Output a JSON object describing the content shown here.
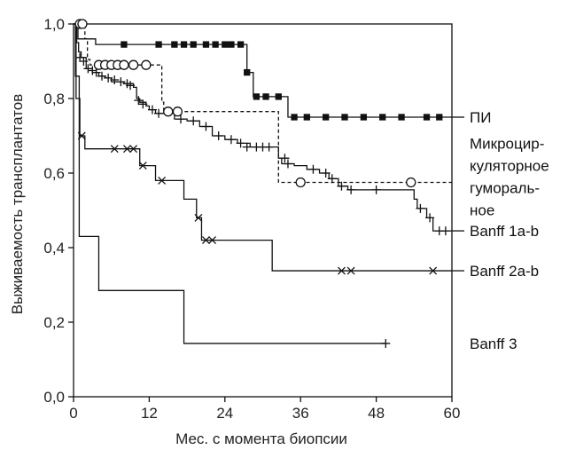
{
  "chart_data": {
    "type": "line",
    "subtype": "kaplan-meier step",
    "xlabel": "Мес. с момента биопсии",
    "ylabel": "Выживаемость трансплантатов",
    "xlim": [
      0,
      60
    ],
    "ylim": [
      0,
      1
    ],
    "x_ticks": [
      "0",
      "12",
      "24",
      "36",
      "48",
      "60"
    ],
    "y_ticks": [
      "0,0",
      "0,2",
      "0,4",
      "0,6",
      "0,8",
      "1,0"
    ],
    "grid": false,
    "legend_placement": "right, labels at curve ends",
    "series": [
      {
        "name": "ПИ",
        "style": "solid",
        "marker": "square",
        "steps": [
          [
            0,
            1.0
          ],
          [
            0.7,
            0.96
          ],
          [
            3.5,
            0.945
          ],
          [
            27.5,
            0.87
          ],
          [
            28.5,
            0.805
          ],
          [
            34,
            0.75
          ],
          [
            60,
            0.75
          ]
        ],
        "censors": [
          [
            8,
            0.945
          ],
          [
            13.5,
            0.945
          ],
          [
            16,
            0.945
          ],
          [
            17.5,
            0.945
          ],
          [
            19,
            0.945
          ],
          [
            21,
            0.945
          ],
          [
            22.5,
            0.945
          ],
          [
            24,
            0.945
          ],
          [
            25,
            0.945
          ],
          [
            26.5,
            0.945
          ],
          [
            27.5,
            0.87
          ],
          [
            29,
            0.805
          ],
          [
            30.5,
            0.805
          ],
          [
            32.5,
            0.805
          ],
          [
            35,
            0.75
          ],
          [
            37,
            0.75
          ],
          [
            40,
            0.75
          ],
          [
            43,
            0.75
          ],
          [
            46,
            0.75
          ],
          [
            49,
            0.75
          ],
          [
            52,
            0.75
          ],
          [
            56,
            0.75
          ],
          [
            58,
            0.75
          ]
        ]
      },
      {
        "name": "Микроцир-\nкуляторное\nгумораль-\nное",
        "style": "dashed",
        "marker": "circle",
        "steps": [
          [
            0,
            1.0
          ],
          [
            1.8,
            0.96
          ],
          [
            2.2,
            0.905
          ],
          [
            2.6,
            0.89
          ],
          [
            14,
            0.79
          ],
          [
            14.3,
            0.765
          ],
          [
            32.5,
            0.575
          ],
          [
            60,
            0.575
          ]
        ],
        "censors": [
          [
            1,
            1.0
          ],
          [
            1.4,
            1.0
          ],
          [
            4,
            0.89
          ],
          [
            5,
            0.89
          ],
          [
            6,
            0.89
          ],
          [
            7,
            0.89
          ],
          [
            8,
            0.89
          ],
          [
            9.5,
            0.89
          ],
          [
            11.5,
            0.89
          ],
          [
            15,
            0.765
          ],
          [
            16.5,
            0.765
          ],
          [
            36,
            0.575
          ],
          [
            53.5,
            0.575
          ]
        ]
      },
      {
        "name": "Banff 1a-b",
        "style": "solid",
        "marker": "plus",
        "steps": [
          [
            0,
            1.0
          ],
          [
            0.5,
            0.95
          ],
          [
            0.8,
            0.925
          ],
          [
            1.2,
            0.91
          ],
          [
            2,
            0.88
          ],
          [
            3,
            0.87
          ],
          [
            4,
            0.86
          ],
          [
            5,
            0.855
          ],
          [
            6,
            0.845
          ],
          [
            8,
            0.84
          ],
          [
            9.5,
            0.83
          ],
          [
            10,
            0.8
          ],
          [
            10.5,
            0.79
          ],
          [
            11.5,
            0.78
          ],
          [
            12,
            0.77
          ],
          [
            13,
            0.76
          ],
          [
            15,
            0.76
          ],
          [
            16,
            0.745
          ],
          [
            18,
            0.74
          ],
          [
            20,
            0.725
          ],
          [
            22,
            0.7
          ],
          [
            24,
            0.69
          ],
          [
            26,
            0.68
          ],
          [
            28,
            0.67
          ],
          [
            32.5,
            0.64
          ],
          [
            33,
            0.625
          ],
          [
            35,
            0.62
          ],
          [
            37,
            0.61
          ],
          [
            39,
            0.6
          ],
          [
            40.5,
            0.585
          ],
          [
            42,
            0.565
          ],
          [
            43.5,
            0.555
          ],
          [
            54,
            0.53
          ],
          [
            54.5,
            0.505
          ],
          [
            56,
            0.48
          ],
          [
            57,
            0.445
          ],
          [
            60,
            0.445
          ]
        ],
        "censors": [
          [
            1,
            0.91
          ],
          [
            1.6,
            0.9
          ],
          [
            2.3,
            0.88
          ],
          [
            3,
            0.875
          ],
          [
            3.6,
            0.87
          ],
          [
            4.5,
            0.86
          ],
          [
            5.5,
            0.855
          ],
          [
            6.5,
            0.85
          ],
          [
            7.5,
            0.845
          ],
          [
            8.5,
            0.84
          ],
          [
            9,
            0.835
          ],
          [
            10.3,
            0.795
          ],
          [
            11,
            0.785
          ],
          [
            12.5,
            0.77
          ],
          [
            13.5,
            0.76
          ],
          [
            17,
            0.745
          ],
          [
            19,
            0.74
          ],
          [
            21,
            0.725
          ],
          [
            23,
            0.7
          ],
          [
            25,
            0.69
          ],
          [
            26.5,
            0.68
          ],
          [
            27.5,
            0.67
          ],
          [
            29,
            0.67
          ],
          [
            30,
            0.67
          ],
          [
            31,
            0.67
          ],
          [
            33.5,
            0.64
          ],
          [
            34,
            0.625
          ],
          [
            38,
            0.61
          ],
          [
            40,
            0.6
          ],
          [
            41,
            0.585
          ],
          [
            42.5,
            0.565
          ],
          [
            44,
            0.555
          ],
          [
            48,
            0.555
          ],
          [
            55,
            0.505
          ],
          [
            56.5,
            0.48
          ],
          [
            58,
            0.445
          ],
          [
            59,
            0.445
          ]
        ]
      },
      {
        "name": "Banff 2a-b",
        "style": "solid",
        "marker": "x",
        "steps": [
          [
            0,
            1.0
          ],
          [
            0.4,
            0.8
          ],
          [
            1,
            0.7
          ],
          [
            1.8,
            0.665
          ],
          [
            10.5,
            0.62
          ],
          [
            13,
            0.58
          ],
          [
            17.5,
            0.53
          ],
          [
            19.5,
            0.48
          ],
          [
            20.3,
            0.42
          ],
          [
            31.5,
            0.338
          ],
          [
            60,
            0.338
          ]
        ],
        "censors": [
          [
            1.3,
            0.7
          ],
          [
            6.5,
            0.665
          ],
          [
            8.5,
            0.665
          ],
          [
            9.5,
            0.665
          ],
          [
            11,
            0.62
          ],
          [
            14,
            0.58
          ],
          [
            19.8,
            0.48
          ],
          [
            21,
            0.42
          ],
          [
            22,
            0.42
          ],
          [
            42.5,
            0.338
          ],
          [
            44,
            0.338
          ],
          [
            57,
            0.338
          ]
        ]
      },
      {
        "name": "Banff 3",
        "style": "solid",
        "marker": "plus",
        "steps": [
          [
            0,
            1.0
          ],
          [
            0.3,
            0.86
          ],
          [
            0.9,
            0.43
          ],
          [
            4,
            0.285
          ],
          [
            17.5,
            0.143
          ],
          [
            49.5,
            0.143
          ]
        ],
        "censors": [
          [
            49.5,
            0.143
          ]
        ]
      }
    ]
  }
}
